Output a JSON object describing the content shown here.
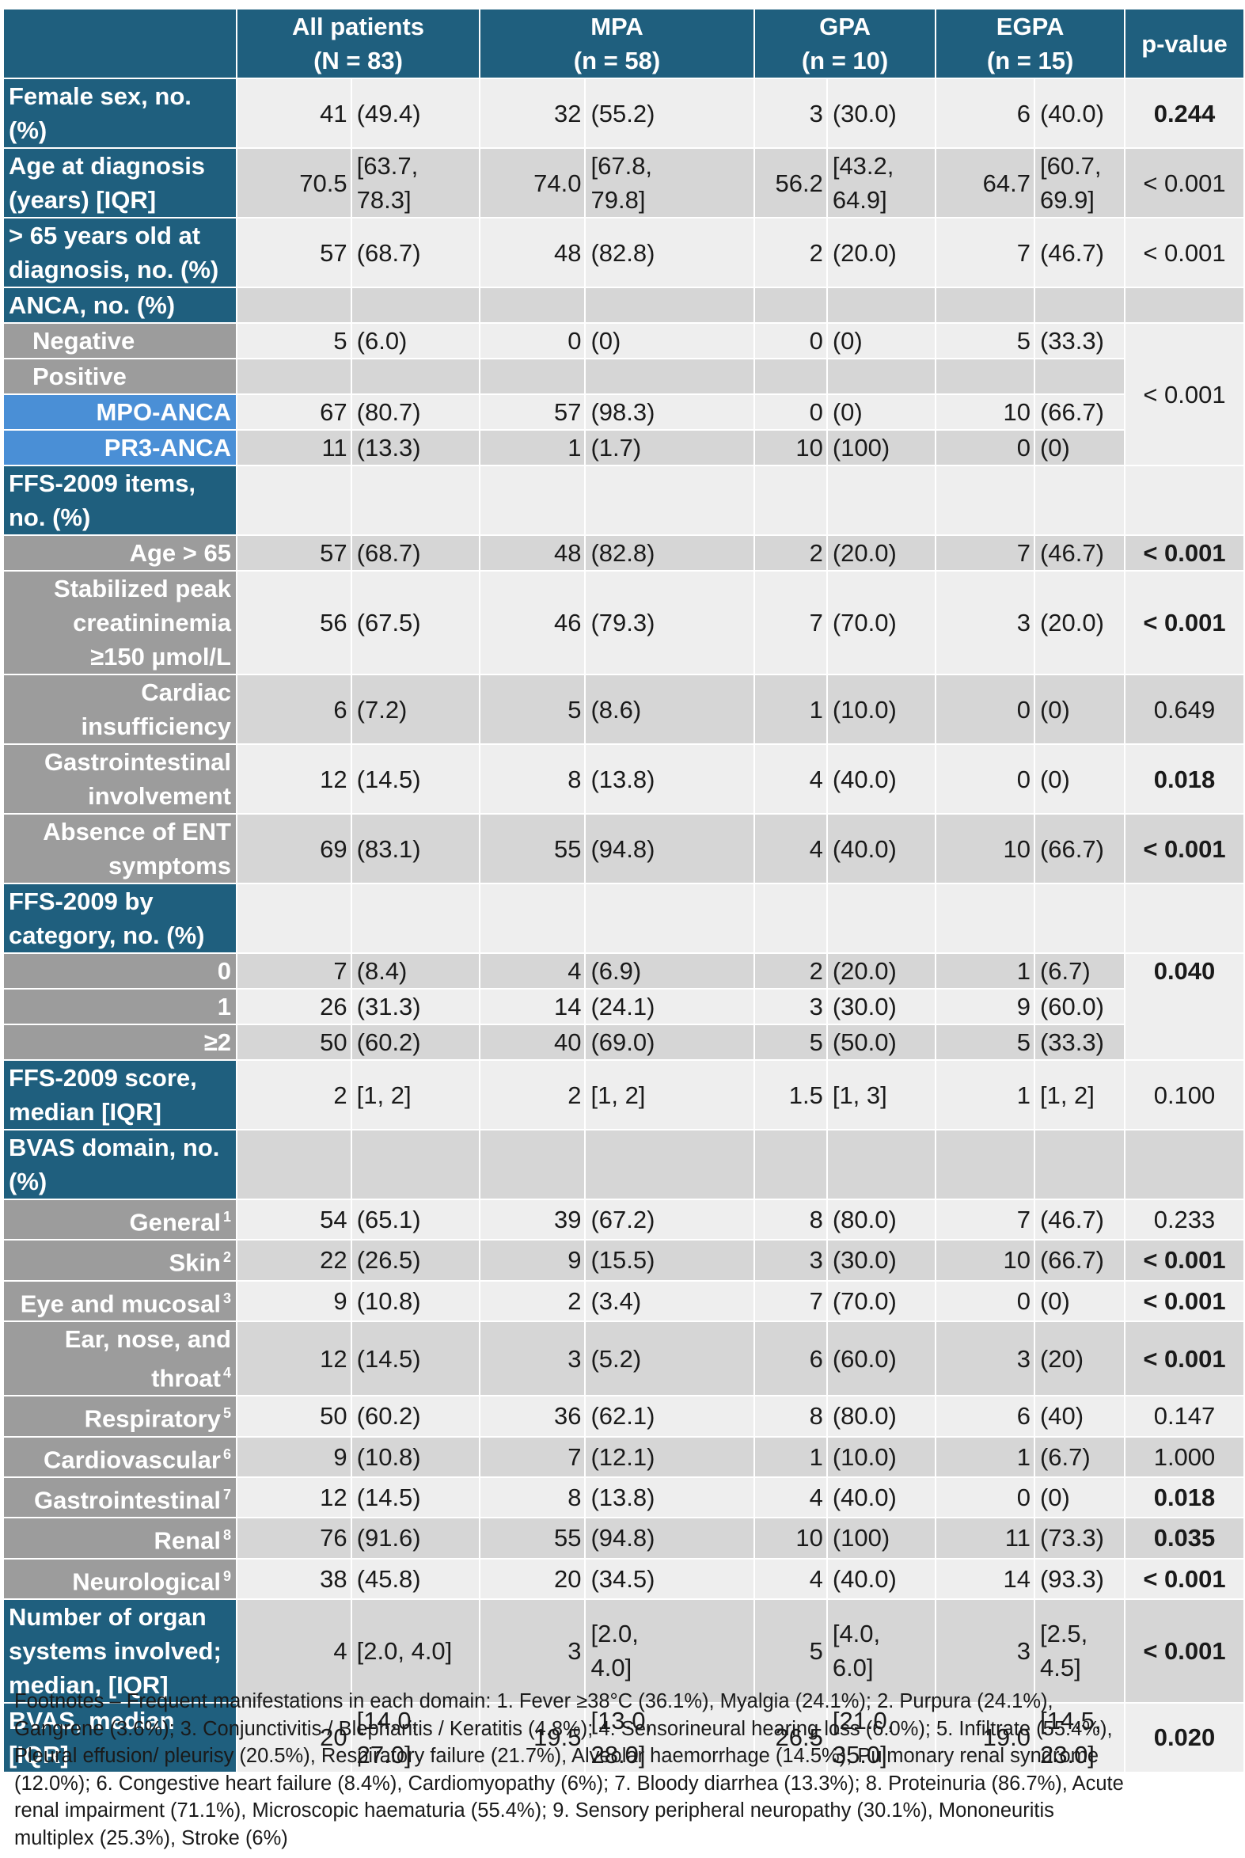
{
  "header": {
    "all": {
      "line1": "All patients",
      "line2": "(N = 83)"
    },
    "mpa": {
      "line1": "MPA",
      "line2": "(n = 58)"
    },
    "gpa": {
      "line1": "GPA",
      "line2": "(n = 10)"
    },
    "egpa": {
      "line1": "EGPA",
      "line2": "(n = 15)"
    },
    "pvalue": "p-value"
  },
  "rows": [
    {
      "label": "Female sex, no.\n(%)",
      "cells": [
        "41",
        "(49.4)",
        "32",
        "(55.2)",
        "3",
        "(30.0)",
        "6",
        "(40.0)"
      ],
      "p": "0.244",
      "p_bold": true
    },
    {
      "label": "Age at diagnosis\n(years) [IQR]",
      "cells": [
        "70.5",
        "[63.7,\n78.3]",
        "74.0",
        "[67.8,\n79.8]",
        "56.2",
        "[43.2,\n64.9]",
        "64.7",
        "[60.7,\n69.9]"
      ],
      "p": "< 0.001",
      "p_bold": false
    },
    {
      "label": "> 65 years old at\ndiagnosis, no. (%)",
      "cells": [
        "57",
        "(68.7)",
        "48",
        "(82.8)",
        "2",
        "(20.0)",
        "7",
        "(46.7)"
      ],
      "p": "< 0.001",
      "p_bold": false
    },
    {
      "label": "ANCA, no. (%)",
      "cells": [
        "",
        "",
        "",
        "",
        "",
        "",
        "",
        ""
      ],
      "p": "",
      "p_bold": false
    },
    {
      "label": "Negative",
      "cells": [
        "5",
        "(6.0)",
        "0",
        "(0)",
        "0",
        "(0)",
        "5",
        "(33.3)"
      ]
    },
    {
      "label": "Positive",
      "cells": [
        "",
        "",
        "",
        "",
        "",
        "",
        "",
        ""
      ]
    },
    {
      "label": "MPO-ANCA",
      "cells": [
        "67",
        "(80.7)",
        "57",
        "(98.3)",
        "0",
        "(0)",
        "10",
        "(66.7)"
      ]
    },
    {
      "label": "PR3-ANCA",
      "cells": [
        "11",
        "(13.3)",
        "1",
        "(1.7)",
        "10",
        "(100)",
        "0",
        "(0)"
      ]
    },
    {
      "label": "FFS-2009 items,\nno. (%)",
      "cells": [
        "",
        "",
        "",
        "",
        "",
        "",
        "",
        ""
      ],
      "p": "",
      "p_bold": false
    },
    {
      "label": "Age > 65",
      "cells": [
        "57",
        "(68.7)",
        "48",
        "(82.8)",
        "2",
        "(20.0)",
        "7",
        "(46.7)"
      ],
      "p": "< 0.001",
      "p_bold": true
    },
    {
      "label": "Stabilized peak\ncreatininemia\n≥150 µmol/L",
      "cells": [
        "56",
        "(67.5)",
        "46",
        "(79.3)",
        "7",
        "(70.0)",
        "3",
        "(20.0)"
      ],
      "p": "< 0.001",
      "p_bold": true
    },
    {
      "label": "Cardiac\ninsufficiency",
      "cells": [
        "6",
        "(7.2)",
        "5",
        "(8.6)",
        "1",
        "(10.0)",
        "0",
        "(0)"
      ],
      "p": "0.649",
      "p_bold": false
    },
    {
      "label": "Gastrointestinal\ninvolvement",
      "cells": [
        "12",
        "(14.5)",
        "8",
        "(13.8)",
        "4",
        "(40.0)",
        "0",
        "(0)"
      ],
      "p": "0.018",
      "p_bold": true
    },
    {
      "label": "Absence of ENT\nsymptoms",
      "cells": [
        "69",
        "(83.1)",
        "55",
        "(94.8)",
        "4",
        "(40.0)",
        "10",
        "(66.7)"
      ],
      "p": "< 0.001",
      "p_bold": true
    },
    {
      "label": "FFS-2009 by\ncategory, no. (%)",
      "cells": [
        "",
        "",
        "",
        "",
        "",
        "",
        "",
        ""
      ],
      "p": "",
      "p_bold": false
    },
    {
      "label": "0",
      "cells": [
        "7",
        "(8.4)",
        "4",
        "(6.9)",
        "2",
        "(20.0)",
        "1",
        "(6.7)"
      ]
    },
    {
      "label": "1",
      "cells": [
        "26",
        "(31.3)",
        "14",
        "(24.1)",
        "3",
        "(30.0)",
        "9",
        "(60.0)"
      ]
    },
    {
      "label": "≥2",
      "cells": [
        "50",
        "(60.2)",
        "40",
        "(69.0)",
        "5",
        "(50.0)",
        "5",
        "(33.3)"
      ]
    },
    {
      "label": "FFS-2009 score,\nmedian [IQR]",
      "cells": [
        "2",
        "[1, 2]",
        "2",
        "[1, 2]",
        "1.5",
        "[1, 3]",
        "1",
        "[1, 2]"
      ],
      "p": "0.100",
      "p_bold": false
    },
    {
      "label": "BVAS domain, no.\n(%)",
      "cells": [
        "",
        "",
        "",
        "",
        "",
        "",
        "",
        ""
      ],
      "p": "",
      "p_bold": false
    },
    {
      "label": "General",
      "sup": "1",
      "cells": [
        "54",
        "(65.1)",
        "39",
        "(67.2)",
        "8",
        "(80.0)",
        "7",
        "(46.7)"
      ],
      "p": "0.233",
      "p_bold": false
    },
    {
      "label": "Skin",
      "sup": "2",
      "cells": [
        "22",
        "(26.5)",
        "9",
        "(15.5)",
        "3",
        "(30.0)",
        "10",
        "(66.7)"
      ],
      "p": "< 0.001",
      "p_bold": true
    },
    {
      "label": "Eye and mucosal",
      "sup": "3",
      "cells": [
        "9",
        "(10.8)",
        "2",
        "(3.4)",
        "7",
        "(70.0)",
        "0",
        "(0)"
      ],
      "p": "< 0.001",
      "p_bold": true
    },
    {
      "label": "Ear, nose, and\nthroat",
      "sup": "4",
      "cells": [
        "12",
        "(14.5)",
        "3",
        "(5.2)",
        "6",
        "(60.0)",
        "3",
        "(20)"
      ],
      "p": "< 0.001",
      "p_bold": true
    },
    {
      "label": "Respiratory",
      "sup": "5",
      "cells": [
        "50",
        "(60.2)",
        "36",
        "(62.1)",
        "8",
        "(80.0)",
        "6",
        "(40)"
      ],
      "p": "0.147",
      "p_bold": false
    },
    {
      "label": "Cardiovascular",
      "sup": "6",
      "cells": [
        "9",
        "(10.8)",
        "7",
        "(12.1)",
        "1",
        "(10.0)",
        "1",
        "(6.7)"
      ],
      "p": "1.000",
      "p_bold": false
    },
    {
      "label": "Gastrointestinal",
      "sup": "7",
      "cells": [
        "12",
        "(14.5)",
        "8",
        "(13.8)",
        "4",
        "(40.0)",
        "0",
        "(0)"
      ],
      "p": "0.018",
      "p_bold": true
    },
    {
      "label": "Renal",
      "sup": "8",
      "cells": [
        "76",
        "(91.6)",
        "55",
        "(94.8)",
        "10",
        "(100)",
        "11",
        "(73.3)"
      ],
      "p": "0.035",
      "p_bold": true
    },
    {
      "label": "Neurological",
      "sup": "9",
      "cells": [
        "38",
        "(45.8)",
        "20",
        "(34.5)",
        "4",
        "(40.0)",
        "14",
        "(93.3)"
      ],
      "p": "< 0.001",
      "p_bold": true
    },
    {
      "label": "Number of organ\nsystems involved;\nmedian, [IQR]",
      "cells": [
        "4",
        "[2.0, 4.0]",
        "3",
        "[2.0,\n4.0]",
        "5",
        "[4.0,\n6.0]",
        "3",
        "[2.5,\n4.5]"
      ],
      "p": "< 0.001",
      "p_bold": true
    },
    {
      "label": "BVAS, median\n[IQR]",
      "cells": [
        "20",
        "[14.0,\n27.0]",
        "19.5",
        "[13.0,\n28.0]",
        "26.5",
        "[21.0,\n35.0]",
        "19.0",
        "[14.5,\n23.0]"
      ],
      "p": "0.020",
      "p_bold": true
    }
  ],
  "merged_p": {
    "anca": "< 0.001",
    "ffs_category": "0.040"
  },
  "footnote_lines": [
    "Footnotes – Frequent manifestations in each domain: 1. Fever ≥38°C (36.1%), Myalgia (24.1%); 2. Purpura (24.1%),",
    "Gangrene (3.6%); 3. Conjunctivitis / Blepharitis / Keratitis (4.8%); 4. Sensorineural hearing loss (6.0%); 5. Infiltrate (55.4%),",
    "Pleural effusion/ pleurisy (20.5%), Respiratory failure (21.7%), Alveolar haemorrhage (14.5%), Pulmonary renal syndrome",
    "(12.0%); 6. Congestive heart failure (8.4%), Cardiomyopathy (6%); 7. Bloody diarrhea (13.3%); 8. Proteinuria (86.7%), Acute",
    "renal impairment (71.1%), Microscopic haematuria (55.4%); 9. Sensory peripheral neuropathy (30.1%), Mononeuritis",
    "multiplex (25.3%), Stroke (6%)"
  ]
}
